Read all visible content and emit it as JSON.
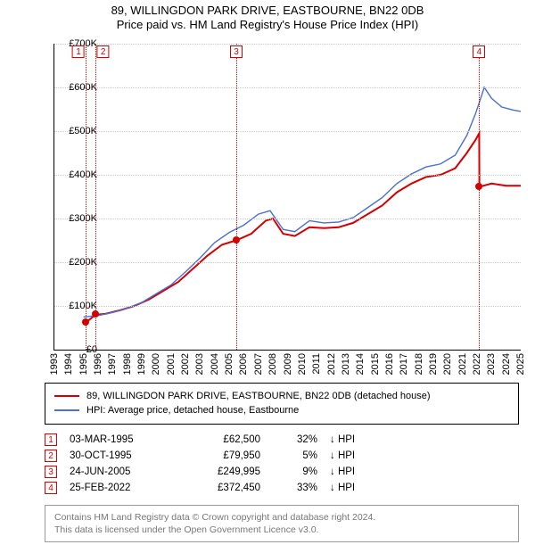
{
  "title": {
    "line1": "89, WILLINGDON PARK DRIVE, EASTBOURNE, BN22 0DB",
    "line2": "Price paid vs. HM Land Registry's House Price Index (HPI)"
  },
  "chart": {
    "type": "line",
    "background_color": "#ffffff",
    "grid_color": "#cccccc",
    "axis_color": "#000000",
    "ylim": [
      0,
      700000
    ],
    "ytick_step": 100000,
    "yticks": [
      "£0",
      "£100K",
      "£200K",
      "£300K",
      "£400K",
      "£500K",
      "£600K",
      "£700K"
    ],
    "x_start_year": 1993,
    "x_end_year": 2025,
    "xticks": [
      1993,
      1994,
      1995,
      1996,
      1997,
      1998,
      1999,
      2000,
      2001,
      2002,
      2003,
      2004,
      2005,
      2006,
      2007,
      2008,
      2009,
      2010,
      2011,
      2012,
      2013,
      2014,
      2015,
      2016,
      2017,
      2018,
      2019,
      2020,
      2021,
      2022,
      2023,
      2024,
      2025
    ],
    "label_fontsize": 11,
    "series": [
      {
        "name": "property",
        "label": "89, WILLINGDON PARK DRIVE, EASTBOURNE, BN22 0DB (detached house)",
        "color": "#d40000",
        "line_width": 2,
        "points": [
          [
            1995.17,
            62500
          ],
          [
            1995.83,
            79950
          ],
          [
            1996.5,
            82000
          ],
          [
            1997.5,
            90000
          ],
          [
            1998.5,
            100000
          ],
          [
            1999.5,
            115000
          ],
          [
            2000.5,
            135000
          ],
          [
            2001.5,
            155000
          ],
          [
            2002.5,
            185000
          ],
          [
            2003.5,
            215000
          ],
          [
            2004.5,
            240000
          ],
          [
            2005.48,
            249995
          ],
          [
            2006.5,
            265000
          ],
          [
            2007.5,
            295000
          ],
          [
            2008.0,
            300000
          ],
          [
            2008.7,
            265000
          ],
          [
            2009.5,
            260000
          ],
          [
            2010.5,
            280000
          ],
          [
            2011.5,
            278000
          ],
          [
            2012.5,
            280000
          ],
          [
            2013.5,
            290000
          ],
          [
            2014.5,
            310000
          ],
          [
            2015.5,
            330000
          ],
          [
            2016.5,
            360000
          ],
          [
            2017.5,
            380000
          ],
          [
            2018.5,
            395000
          ],
          [
            2019.5,
            400000
          ],
          [
            2020.5,
            415000
          ],
          [
            2021.3,
            450000
          ],
          [
            2021.9,
            480000
          ],
          [
            2022.15,
            495000
          ],
          [
            2022.16,
            372450
          ],
          [
            2023.0,
            380000
          ],
          [
            2024.0,
            375000
          ],
          [
            2025.0,
            375000
          ]
        ]
      },
      {
        "name": "hpi",
        "label": "HPI: Average price, detached house, Eastbourne",
        "color": "#4a6fd4",
        "line_width": 1.4,
        "points": [
          [
            1995.0,
            75000
          ],
          [
            1996.0,
            78000
          ],
          [
            1997.0,
            85000
          ],
          [
            1998.0,
            95000
          ],
          [
            1999.0,
            108000
          ],
          [
            2000.0,
            128000
          ],
          [
            2001.0,
            148000
          ],
          [
            2002.0,
            178000
          ],
          [
            2003.0,
            210000
          ],
          [
            2004.0,
            245000
          ],
          [
            2005.0,
            268000
          ],
          [
            2006.0,
            285000
          ],
          [
            2007.0,
            310000
          ],
          [
            2007.8,
            318000
          ],
          [
            2008.7,
            275000
          ],
          [
            2009.5,
            270000
          ],
          [
            2010.5,
            295000
          ],
          [
            2011.5,
            290000
          ],
          [
            2012.5,
            292000
          ],
          [
            2013.5,
            302000
          ],
          [
            2014.5,
            325000
          ],
          [
            2015.5,
            348000
          ],
          [
            2016.5,
            380000
          ],
          [
            2017.5,
            402000
          ],
          [
            2018.5,
            418000
          ],
          [
            2019.5,
            425000
          ],
          [
            2020.5,
            445000
          ],
          [
            2021.3,
            490000
          ],
          [
            2021.9,
            540000
          ],
          [
            2022.5,
            600000
          ],
          [
            2023.0,
            575000
          ],
          [
            2023.7,
            555000
          ],
          [
            2024.5,
            548000
          ],
          [
            2025.0,
            545000
          ]
        ]
      }
    ],
    "transaction_markers": [
      {
        "n": "1",
        "year": 1995.17,
        "price": 62500
      },
      {
        "n": "2",
        "year": 1995.83,
        "price": 79950
      },
      {
        "n": "3",
        "year": 2005.48,
        "price": 249995
      },
      {
        "n": "4",
        "year": 2022.15,
        "price": 372450
      }
    ],
    "marker_border_color": "#d40000",
    "marker_dot_color": "#d40000",
    "vline_color": "#d40000"
  },
  "transactions": [
    {
      "n": "1",
      "date": "03-MAR-1995",
      "price": "£62,500",
      "pct": "32%",
      "dir": "↓ HPI"
    },
    {
      "n": "2",
      "date": "30-OCT-1995",
      "price": "£79,950",
      "pct": "5%",
      "dir": "↓ HPI"
    },
    {
      "n": "3",
      "date": "24-JUN-2005",
      "price": "£249,995",
      "pct": "9%",
      "dir": "↓ HPI"
    },
    {
      "n": "4",
      "date": "25-FEB-2022",
      "price": "£372,450",
      "pct": "33%",
      "dir": "↓ HPI"
    }
  ],
  "footer": {
    "line1": "Contains HM Land Registry data © Crown copyright and database right 2024.",
    "line2": "This data is licensed under the Open Government Licence v3.0."
  }
}
